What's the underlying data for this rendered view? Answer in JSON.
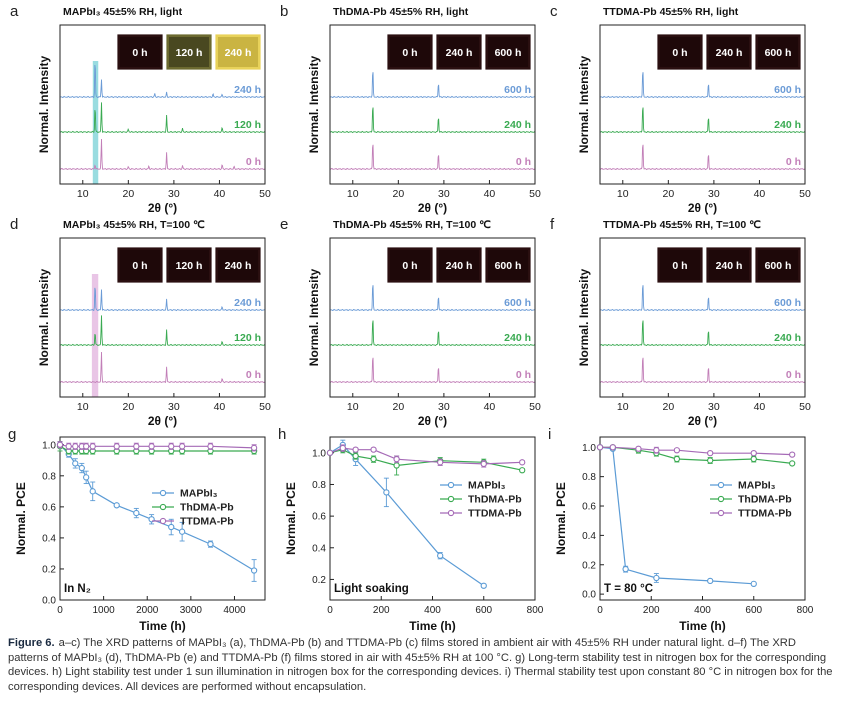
{
  "caption": {
    "label": "Figure 6.",
    "text": "a–c) The XRD patterns of MAPbI₃ (a), ThDMA-Pb (b) and TTDMA-Pb (c) films stored in ambient air with 45±5% RH under natural light. d–f) The XRD patterns of MAPbI₃ (d), ThDMA-Pb (e) and TTDMA-Pb (f) films stored in air with 45±5% RH at 100 °C. g) Long-term stability test in nitrogen box for the corresponding devices. h) Light stability test under 1 sun illumination in nitrogen box for the corresponding devices. i) Thermal stability test upon constant 80 °C in nitrogen box for the corresponding devices. All devices are performed without encapsulation."
  },
  "chart_data": [
    {
      "panel": "a",
      "type": "line",
      "title": "MAPbI₃ 45±5% RH, light",
      "xlabel": "2θ (°)",
      "ylabel": "Normal. Intensity",
      "xlim": [
        5,
        50
      ],
      "xticks": [
        10,
        20,
        30,
        40,
        50
      ],
      "highlight": {
        "x": [
          12.2,
          13.4
        ],
        "color": "#7fd3d8"
      },
      "photos": [
        "0 h",
        "120 h",
        "240 h"
      ],
      "photo_styles": [
        "dark",
        "olive",
        "yellow"
      ],
      "series": [
        {
          "name": "0 h",
          "color": "#c27fb8",
          "peaks": [
            [
              12.7,
              0.15
            ],
            [
              14.1,
              1.0
            ],
            [
              20.0,
              0.08
            ],
            [
              24.5,
              0.1
            ],
            [
              28.4,
              0.55
            ],
            [
              31.9,
              0.12
            ],
            [
              40.6,
              0.15
            ],
            [
              43.2,
              0.08
            ]
          ]
        },
        {
          "name": "120 h",
          "color": "#3aaa52",
          "peaks": [
            [
              12.7,
              0.9
            ],
            [
              14.1,
              1.0
            ],
            [
              20.0,
              0.1
            ],
            [
              28.4,
              0.55
            ],
            [
              31.9,
              0.12
            ],
            [
              40.6,
              0.15
            ]
          ]
        },
        {
          "name": "240 h",
          "color": "#6b9bd6",
          "peaks": [
            [
              12.7,
              1.3
            ],
            [
              14.1,
              0.6
            ],
            [
              25.8,
              0.12
            ],
            [
              28.4,
              0.15
            ],
            [
              38.6,
              0.1
            ],
            [
              40.6,
              0.1
            ]
          ]
        }
      ]
    },
    {
      "panel": "b",
      "type": "line",
      "title": "ThDMA-Pb 45±5% RH, light",
      "xlabel": "2θ (°)",
      "ylabel": "Normal. Intensity",
      "xlim": [
        5,
        50
      ],
      "xticks": [
        10,
        20,
        30,
        40,
        50
      ],
      "photos": [
        "0 h",
        "240 h",
        "600 h"
      ],
      "photo_styles": [
        "dark",
        "dark",
        "dark"
      ],
      "series": [
        {
          "name": "0 h",
          "color": "#c27fb8",
          "peaks": [
            [
              14.4,
              1.0
            ],
            [
              28.8,
              0.55
            ]
          ]
        },
        {
          "name": "240 h",
          "color": "#3aaa52",
          "peaks": [
            [
              14.4,
              1.0
            ],
            [
              28.8,
              0.55
            ]
          ]
        },
        {
          "name": "600 h",
          "color": "#6b9bd6",
          "peaks": [
            [
              14.4,
              1.0
            ],
            [
              28.8,
              0.5
            ]
          ]
        }
      ]
    },
    {
      "panel": "c",
      "type": "line",
      "title": "TTDMA-Pb 45±5% RH, light",
      "xlabel": "2θ (°)",
      "ylabel": "Normal. Intensity",
      "xlim": [
        5,
        50
      ],
      "xticks": [
        10,
        20,
        30,
        40,
        50
      ],
      "photos": [
        "0 h",
        "240 h",
        "600 h"
      ],
      "photo_styles": [
        "dark",
        "dark",
        "dark"
      ],
      "series": [
        {
          "name": "0 h",
          "color": "#c27fb8",
          "peaks": [
            [
              14.4,
              1.0
            ],
            [
              28.8,
              0.55
            ]
          ]
        },
        {
          "name": "240 h",
          "color": "#3aaa52",
          "peaks": [
            [
              14.4,
              1.0
            ],
            [
              28.8,
              0.55
            ]
          ]
        },
        {
          "name": "600 h",
          "color": "#6b9bd6",
          "peaks": [
            [
              14.4,
              1.0
            ],
            [
              28.8,
              0.5
            ]
          ]
        }
      ]
    },
    {
      "panel": "d",
      "type": "line",
      "title": "MAPbI₃ 45±5% RH, T=100 ℃",
      "xlabel": "2θ (°)",
      "ylabel": "Normal. Intensity",
      "xlim": [
        5,
        50
      ],
      "xticks": [
        10,
        20,
        30,
        40,
        50
      ],
      "highlight": {
        "x": [
          12.0,
          13.4
        ],
        "color": "#e4b6e0"
      },
      "photos": [
        "0 h",
        "120 h",
        "240 h"
      ],
      "photo_styles": [
        "dark",
        "dark",
        "dark"
      ],
      "series": [
        {
          "name": "0 h",
          "color": "#c27fb8",
          "peaks": [
            [
              14.1,
              1.0
            ],
            [
              28.4,
              0.5
            ],
            [
              40.6,
              0.12
            ]
          ]
        },
        {
          "name": "120 h",
          "color": "#3aaa52",
          "peaks": [
            [
              12.7,
              0.45
            ],
            [
              14.1,
              1.0
            ],
            [
              28.4,
              0.5
            ],
            [
              40.6,
              0.12
            ]
          ]
        },
        {
          "name": "240 h",
          "color": "#6b9bd6",
          "peaks": [
            [
              12.7,
              0.9
            ],
            [
              14.1,
              0.7
            ],
            [
              28.4,
              0.35
            ],
            [
              40.6,
              0.12
            ]
          ]
        }
      ]
    },
    {
      "panel": "e",
      "type": "line",
      "title": "ThDMA-Pb 45±5% RH, T=100 ℃",
      "xlabel": "2θ (°)",
      "ylabel": "Normal. Intensity",
      "xlim": [
        5,
        50
      ],
      "xticks": [
        10,
        20,
        30,
        40,
        50
      ],
      "photos": [
        "0 h",
        "240 h",
        "600 h"
      ],
      "photo_styles": [
        "dark",
        "dark",
        "dark"
      ],
      "series": [
        {
          "name": "0 h",
          "color": "#c27fb8",
          "peaks": [
            [
              14.4,
              1.0
            ],
            [
              28.8,
              0.55
            ]
          ]
        },
        {
          "name": "240 h",
          "color": "#3aaa52",
          "peaks": [
            [
              14.4,
              1.0
            ],
            [
              28.8,
              0.55
            ]
          ]
        },
        {
          "name": "600 h",
          "color": "#6b9bd6",
          "peaks": [
            [
              14.4,
              1.0
            ],
            [
              28.8,
              0.5
            ]
          ]
        }
      ]
    },
    {
      "panel": "f",
      "type": "line",
      "title": "TTDMA-Pb 45±5% RH, T=100 ℃",
      "xlabel": "2θ (°)",
      "ylabel": "Normal. Intensity",
      "xlim": [
        5,
        50
      ],
      "xticks": [
        10,
        20,
        30,
        40,
        50
      ],
      "photos": [
        "0 h",
        "240 h",
        "600 h"
      ],
      "photo_styles": [
        "dark",
        "dark",
        "dark"
      ],
      "series": [
        {
          "name": "0 h",
          "color": "#c27fb8",
          "peaks": [
            [
              14.4,
              1.0
            ],
            [
              28.8,
              0.55
            ]
          ]
        },
        {
          "name": "240 h",
          "color": "#3aaa52",
          "peaks": [
            [
              14.4,
              1.0
            ],
            [
              28.8,
              0.55
            ]
          ]
        },
        {
          "name": "600 h",
          "color": "#6b9bd6",
          "peaks": [
            [
              14.4,
              1.0
            ],
            [
              28.8,
              0.5
            ]
          ]
        }
      ]
    },
    {
      "panel": "g",
      "type": "line",
      "xlabel": "Time (h)",
      "ylabel": "Normal. PCE",
      "xlim": [
        0,
        4700
      ],
      "ylim": [
        0.0,
        1.05
      ],
      "xticks": [
        0,
        1000,
        2000,
        3000,
        4000
      ],
      "yticks": [
        0.0,
        0.2,
        0.4,
        0.6,
        0.8,
        1.0
      ],
      "yticklabels": [
        "0.0",
        "0.2",
        "0.4",
        "0.6",
        "0.8",
        "1.0"
      ],
      "annotation": "In N₂",
      "legend": "top-right",
      "series": [
        {
          "name": "MAPbI₃",
          "color": "#5b9bd5",
          "x": [
            0,
            200,
            350,
            500,
            600,
            750,
            1300,
            1750,
            2100,
            2550,
            2800,
            3450,
            4450
          ],
          "y": [
            1.0,
            0.94,
            0.88,
            0.85,
            0.79,
            0.7,
            0.61,
            0.56,
            0.52,
            0.47,
            0.44,
            0.36,
            0.19
          ],
          "err": [
            0.02,
            0.02,
            0.03,
            0.03,
            0.04,
            0.06,
            0.01,
            0.03,
            0.03,
            0.05,
            0.06,
            0.02,
            0.07
          ]
        },
        {
          "name": "ThDMA-Pb",
          "color": "#3aaa52",
          "x": [
            0,
            200,
            350,
            500,
            600,
            750,
            1300,
            1750,
            2100,
            2550,
            2800,
            3450,
            4450
          ],
          "y": [
            0.99,
            0.96,
            0.96,
            0.96,
            0.96,
            0.96,
            0.96,
            0.96,
            0.96,
            0.96,
            0.96,
            0.96,
            0.96
          ],
          "err": [
            0.03,
            0.02,
            0.02,
            0.02,
            0.02,
            0.02,
            0.02,
            0.02,
            0.02,
            0.02,
            0.02,
            0.02,
            0.02
          ]
        },
        {
          "name": "TTDMA-Pb",
          "color": "#a56ab6",
          "x": [
            0,
            200,
            350,
            500,
            600,
            750,
            1300,
            1750,
            2100,
            2550,
            2800,
            3450,
            4450
          ],
          "y": [
            1.0,
            0.99,
            0.99,
            0.99,
            0.99,
            0.99,
            0.99,
            0.99,
            0.99,
            0.99,
            0.99,
            0.99,
            0.98
          ],
          "err": [
            0.02,
            0.02,
            0.02,
            0.02,
            0.02,
            0.02,
            0.02,
            0.02,
            0.02,
            0.02,
            0.02,
            0.02,
            0.02
          ]
        }
      ]
    },
    {
      "panel": "h",
      "type": "line",
      "xlabel": "Time (h)",
      "ylabel": "Normal. PCE",
      "xlim": [
        0,
        800
      ],
      "ylim": [
        0.07,
        1.1
      ],
      "xticks": [
        0,
        200,
        400,
        600,
        800
      ],
      "yticks": [
        0.2,
        0.4,
        0.6,
        0.8,
        1.0
      ],
      "yticklabels": [
        "0.2",
        "0.4",
        "0.6",
        "0.8",
        "1.0"
      ],
      "annotation": "Light soaking",
      "legend": "right",
      "series": [
        {
          "name": "MAPbI₃",
          "color": "#5b9bd5",
          "x": [
            0,
            50,
            100,
            220,
            430,
            600
          ],
          "y": [
            1.0,
            1.05,
            0.96,
            0.75,
            0.35,
            0.16
          ],
          "err": [
            0.0,
            0.03,
            0.04,
            0.09,
            0.02,
            0.01
          ]
        },
        {
          "name": "ThDMA-Pb",
          "color": "#3aaa52",
          "x": [
            0,
            50,
            100,
            170,
            260,
            430,
            600,
            750
          ],
          "y": [
            1.0,
            1.02,
            0.98,
            0.96,
            0.92,
            0.95,
            0.94,
            0.89
          ],
          "err": [
            0.0,
            0.02,
            0.02,
            0.02,
            0.06,
            0.02,
            0.02,
            0.01
          ]
        },
        {
          "name": "TTDMA-Pb",
          "color": "#a56ab6",
          "x": [
            0,
            50,
            100,
            170,
            260,
            430,
            600,
            750
          ],
          "y": [
            1.0,
            1.03,
            1.02,
            1.02,
            0.96,
            0.94,
            0.93,
            0.94
          ],
          "err": [
            0.0,
            0.02,
            0.01,
            0.01,
            0.02,
            0.02,
            0.02,
            0.01
          ]
        }
      ]
    },
    {
      "panel": "i",
      "type": "line",
      "xlabel": "Time (h)",
      "ylabel": "Normal. PCE",
      "xlim": [
        0,
        800
      ],
      "ylim": [
        -0.04,
        1.07
      ],
      "xticks": [
        0,
        200,
        400,
        600,
        800
      ],
      "yticks": [
        0.0,
        0.2,
        0.4,
        0.6,
        0.8,
        1.0
      ],
      "yticklabels": [
        "0.0",
        "0.2",
        "0.4",
        "0.6",
        "0.8",
        "1.0"
      ],
      "annotation": "T = 80 °C",
      "legend": "right",
      "series": [
        {
          "name": "MAPbI₃",
          "color": "#5b9bd5",
          "x": [
            0,
            50,
            100,
            220,
            430,
            600
          ],
          "y": [
            1.0,
            0.99,
            0.17,
            0.11,
            0.09,
            0.07
          ],
          "err": [
            0.0,
            0.0,
            0.02,
            0.03,
            0.01,
            0.01
          ]
        },
        {
          "name": "ThDMA-Pb",
          "color": "#3aaa52",
          "x": [
            0,
            50,
            150,
            220,
            300,
            430,
            600,
            750
          ],
          "y": [
            1.0,
            1.0,
            0.98,
            0.96,
            0.92,
            0.91,
            0.92,
            0.89
          ],
          "err": [
            0.0,
            0.0,
            0.02,
            0.02,
            0.02,
            0.02,
            0.02,
            0.01
          ]
        },
        {
          "name": "TTDMA-Pb",
          "color": "#a56ab6",
          "x": [
            0,
            50,
            150,
            220,
            300,
            430,
            600,
            750
          ],
          "y": [
            1.0,
            1.0,
            0.99,
            0.98,
            0.98,
            0.96,
            0.96,
            0.95
          ],
          "err": [
            0.0,
            0.0,
            0.01,
            0.02,
            0.01,
            0.01,
            0.01,
            0.01
          ]
        }
      ]
    }
  ]
}
